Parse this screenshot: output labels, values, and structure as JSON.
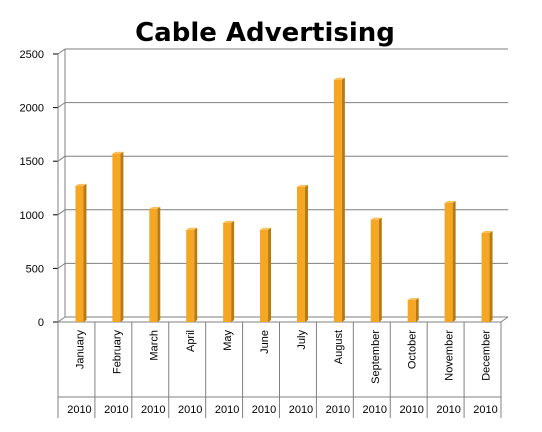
{
  "chart_data": {
    "type": "bar",
    "title": "Cable Advertising",
    "categories": [
      "January",
      "February",
      "March",
      "April",
      "May",
      "June",
      "July",
      "August",
      "September",
      "October",
      "November",
      "December"
    ],
    "category_groups": [
      "2010",
      "2010",
      "2010",
      "2010",
      "2010",
      "2010",
      "2010",
      "2010",
      "2010",
      "2010",
      "2010",
      "2010"
    ],
    "values": [
      1270,
      1570,
      1055,
      860,
      925,
      860,
      1260,
      2260,
      955,
      205,
      1110,
      830
    ],
    "ylim": [
      0,
      2500
    ],
    "yticks": [
      "0",
      "500",
      "1000",
      "1500",
      "2000",
      "2500"
    ],
    "grid": true,
    "legend": "none",
    "colors": {
      "bar_front": "#f5a623",
      "bar_side": "#b87a12",
      "bar_top": "#fbc15a",
      "grid": "#7f7f7f"
    }
  }
}
